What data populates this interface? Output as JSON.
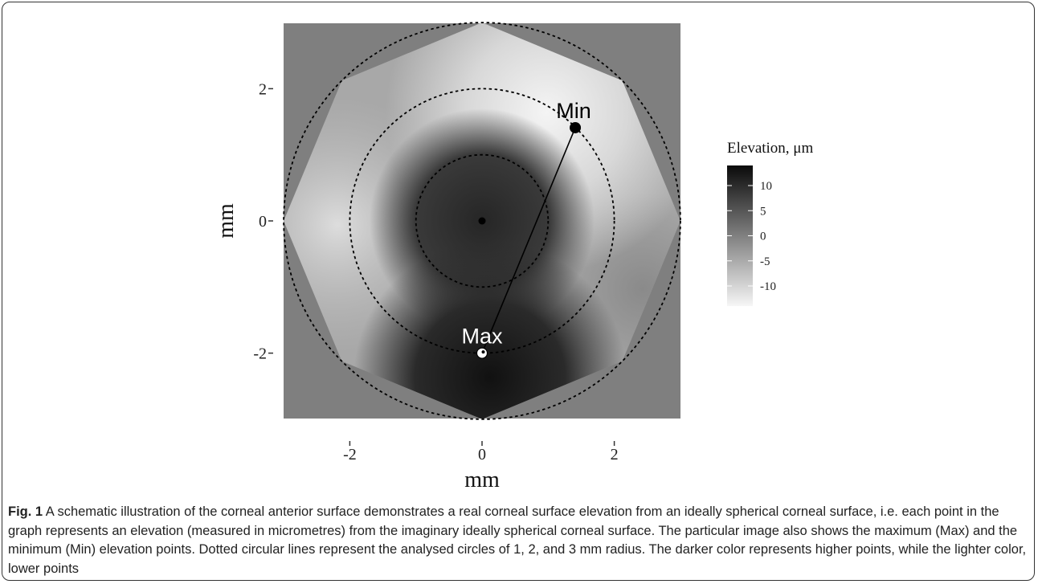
{
  "chart_data": {
    "type": "heatmap",
    "xlabel": "mm",
    "ylabel": "mm",
    "x_ticks": [
      -2,
      0,
      2
    ],
    "y_ticks": [
      2,
      0,
      -2
    ],
    "xlim": [
      -3,
      3
    ],
    "ylim": [
      -3,
      3
    ],
    "legend": {
      "title": "Elevation, μm",
      "ticks": [
        10,
        5,
        0,
        -5,
        -10
      ],
      "range": [
        -14,
        14
      ],
      "placement": "right",
      "color_high": "#0a0a0a",
      "color_low": "#f6f6f6"
    },
    "circles_radius_mm": [
      1,
      2,
      3
    ],
    "points": [
      {
        "label": "Min",
        "x": 1.41,
        "y": 1.41
      },
      {
        "label": "Max",
        "x": 0,
        "y": -2
      },
      {
        "label": "",
        "x": 0,
        "y": 0
      }
    ],
    "grid": false,
    "background_color": "#7f7f7f"
  },
  "caption": {
    "label": "Fig. 1",
    "text": " A schematic illustration of the corneal anterior surface demonstrates a real corneal surface elevation from an ideally spherical corneal surface, i.e. each point in the graph represents an elevation (measured in micrometres) from the imaginary ideally spherical corneal surface. The particular image also shows the maximum (Max) and the minimum (Min) elevation points. Dotted circular lines represent the analysed circles of 1, 2, and 3 mm radius. The darker color represents higher points, while the lighter color, lower points"
  }
}
